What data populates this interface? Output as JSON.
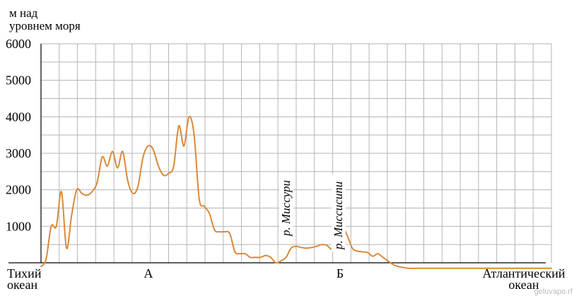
{
  "chart_data": {
    "type": "line",
    "ylabel_lines": [
      "м над",
      "уровнем моря"
    ],
    "ylim": [
      0,
      6000
    ],
    "y_ticks": [
      6000,
      5000,
      4000,
      3000,
      2000,
      1000
    ],
    "grid": true,
    "line_color": "#d9893a",
    "x_labels": [
      {
        "text": [
          "Тихий",
          "океан"
        ]
      },
      {
        "text": [
          "А"
        ]
      },
      {
        "text": [
          "Б"
        ]
      },
      {
        "text": [
          "Атлантический",
          "океан"
        ]
      }
    ],
    "annotations": [
      "р. Миссури",
      "р. Миссисипи"
    ],
    "profile": {
      "x": [
        0,
        1,
        2,
        3,
        4,
        5,
        6,
        7,
        8,
        9,
        10,
        11,
        12,
        13,
        14,
        15,
        16,
        17,
        18,
        19,
        20,
        21,
        22,
        23,
        24,
        25,
        26,
        27,
        28,
        29,
        30,
        31,
        32,
        33,
        34,
        35,
        36,
        37,
        38,
        39,
        40,
        41,
        42,
        43,
        44,
        45,
        46,
        47,
        48,
        49,
        50,
        51,
        52,
        53,
        54,
        55,
        56,
        57,
        58,
        59,
        60,
        61,
        62,
        63,
        64,
        65,
        66,
        67,
        68,
        69,
        70,
        71,
        72,
        73,
        74,
        75,
        76,
        77,
        78,
        79,
        80,
        81,
        82,
        83,
        84,
        85,
        86,
        87,
        88,
        89,
        90,
        91,
        92,
        93,
        94,
        95,
        96,
        97,
        98,
        99,
        100
      ],
      "y": [
        -100,
        100,
        1000,
        1000,
        1950,
        400,
        1300,
        2000,
        1900,
        1850,
        1950,
        2200,
        2900,
        2650,
        3050,
        2600,
        3050,
        2250,
        1900,
        2100,
        2900,
        3200,
        3100,
        2650,
        2400,
        2450,
        2650,
        3750,
        3200,
        4000,
        3500,
        1750,
        1550,
        1350,
        900,
        850,
        850,
        800,
        300,
        250,
        250,
        150,
        150,
        150,
        200,
        150,
        0,
        50,
        150,
        400,
        450,
        420,
        400,
        420,
        450,
        500,
        480,
        380,
        600,
        1000,
        750,
        400,
        320,
        300,
        280,
        180,
        250,
        150,
        50,
        -50,
        -100,
        -130,
        -150,
        -150,
        -150,
        -150,
        -150,
        -150,
        -150,
        -150,
        -150,
        -150,
        -150,
        -150,
        -150,
        -150,
        -150,
        -150,
        -150,
        -150,
        -150,
        -150,
        -150,
        -150,
        -150,
        -150,
        -150,
        -150,
        -150,
        -150,
        -150
      ]
    }
  },
  "watermark": "geluvapo.rf"
}
